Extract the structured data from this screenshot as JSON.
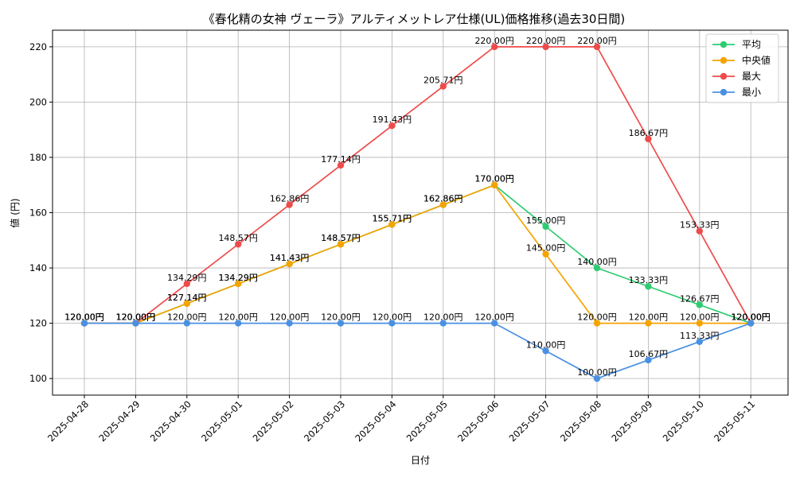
{
  "chart_data": {
    "type": "line",
    "title": "《春化精の女神 ヴェーラ》アルティメットレア仕様(UL)価格推移(過去30日間)",
    "xlabel": "日付",
    "ylabel": "値 (円)",
    "ylim": [
      94,
      226
    ],
    "yticks": [
      100,
      120,
      140,
      160,
      180,
      200,
      220
    ],
    "grid": true,
    "legend_position": "top-right",
    "categories": [
      "2025-04-28",
      "2025-04-29",
      "2025-04-30",
      "2025-05-01",
      "2025-05-02",
      "2025-05-03",
      "2025-05-04",
      "2025-05-05",
      "2025-05-06",
      "2025-05-07",
      "2025-05-08",
      "2025-05-09",
      "2025-05-10",
      "2025-05-11"
    ],
    "series": [
      {
        "name": "平均",
        "color": "#2ecc71",
        "values": [
          120.0,
          120.0,
          127.14,
          134.29,
          141.43,
          148.57,
          155.71,
          162.86,
          170.0,
          155.0,
          140.0,
          133.33,
          126.67,
          120.0
        ],
        "labels": [
          "120.00円",
          "120.00円",
          "127.14円",
          "134.29円",
          "141.43円",
          "148.57円",
          "155.71円",
          "162.86円",
          "170.00円",
          "155.00円",
          "140.00円",
          "133.33円",
          "126.67円",
          "120.00円"
        ]
      },
      {
        "name": "中央値",
        "color": "#f5a300",
        "values": [
          120.0,
          120.0,
          127.14,
          134.29,
          141.43,
          148.57,
          155.71,
          162.86,
          170.0,
          145.0,
          120.0,
          120.0,
          120.0,
          120.0
        ],
        "labels": [
          "120.00円",
          "120.00円",
          "127.14円",
          "134.29円",
          "141.43円",
          "148.57円",
          "155.71円",
          "162.86円",
          "170.00円",
          "145.00円",
          "120.00円",
          "120.00円",
          "120.00円",
          "120.00円"
        ]
      },
      {
        "name": "最大",
        "color": "#ef4b4b",
        "values": [
          120.0,
          120.0,
          134.29,
          148.57,
          162.86,
          177.14,
          191.43,
          205.71,
          220.0,
          220.0,
          220.0,
          186.67,
          153.33,
          120.0
        ],
        "labels": [
          "120.00円",
          "120.00円",
          "134.29円",
          "148.57円",
          "162.86円",
          "177.14円",
          "191.43円",
          "205.71円",
          "220.00円",
          "220.00円",
          "220.00円",
          "186.67円",
          "153.33円",
          "120.00円"
        ]
      },
      {
        "name": "最小",
        "color": "#4a90e2",
        "values": [
          120.0,
          120.0,
          120.0,
          120.0,
          120.0,
          120.0,
          120.0,
          120.0,
          120.0,
          110.0,
          100.0,
          106.67,
          113.33,
          120.0
        ],
        "labels": [
          "120.00円",
          "120.00円",
          "120.00円",
          "120.00円",
          "120.00円",
          "120.00円",
          "120.00円",
          "120.00円",
          "120.00円",
          "110.00円",
          "100.00円",
          "106.67円",
          "113.33円",
          "120.00円"
        ]
      }
    ]
  }
}
